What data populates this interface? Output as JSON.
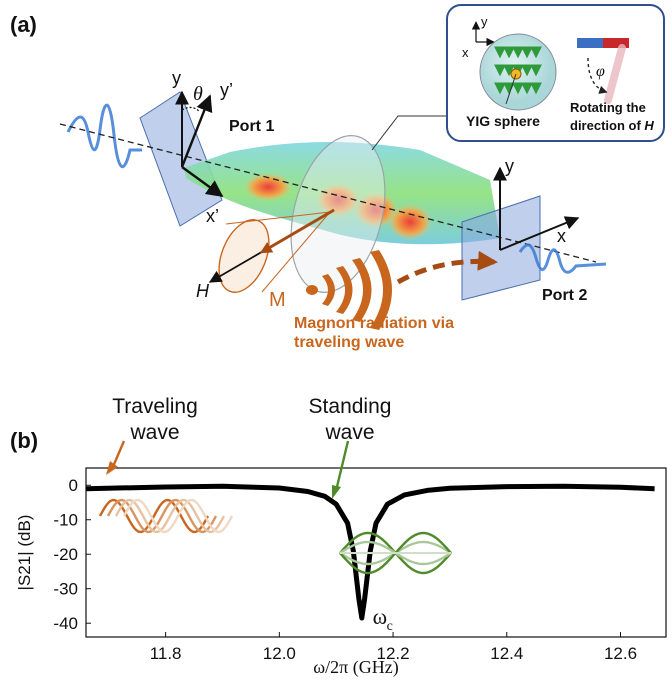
{
  "panel_a": {
    "label": "(a)",
    "axes_port1": {
      "y": "y",
      "theta": "θ",
      "y_prime": "y’",
      "x_prime": "x’"
    },
    "port1_label": "Port 1",
    "port2_label": "Port 2",
    "axes_port2": {
      "y": "y",
      "x": "x"
    },
    "field_label": "H",
    "magnon_label": "M",
    "magnon_caption_line1": "Magnon radiation via",
    "magnon_caption_line2": "traveling wave",
    "inset": {
      "axes": {
        "y": "y",
        "x": "x"
      },
      "sphere_label": "YIG sphere",
      "phi_label": "φ",
      "rotation_line1": "Rotating the",
      "rotation_line2": "direction of ",
      "rotation_H": "H"
    },
    "colors": {
      "orange": "#c8661e",
      "wave_blue": "#3a7bd5",
      "inset_border": "#2f4f8f"
    }
  },
  "panel_b": {
    "label": "(b)",
    "traveling_line1": "Traveling",
    "traveling_line2": "wave",
    "standing_line1": "Standing",
    "standing_line2": "wave",
    "omega_c": "ω",
    "omega_c_sub": "c",
    "colors": {
      "traveling": "#c8661e",
      "standing": "#4f8a2b"
    }
  },
  "chart_data": {
    "type": "line",
    "xlabel": "ω/2π (GHz)",
    "ylabel": "|S21| (dB)",
    "xlim": [
      11.66,
      12.68
    ],
    "ylim": [
      -44,
      5
    ],
    "x_ticks": [
      11.8,
      12.0,
      12.2,
      12.4,
      12.6
    ],
    "y_ticks": [
      0,
      -10,
      -20,
      -30,
      -40
    ],
    "grid": false,
    "series": [
      {
        "x": [
          11.66,
          11.8,
          11.9,
          12.0,
          12.05,
          12.08,
          12.1,
          12.12,
          12.13,
          12.14,
          12.145,
          12.15,
          12.16,
          12.17,
          12.19,
          12.22,
          12.26,
          12.3,
          12.4,
          12.5,
          12.6,
          12.66
        ],
        "y": [
          -1.0,
          -0.5,
          -0.3,
          -0.8,
          -1.8,
          -3.2,
          -5.5,
          -11,
          -19,
          -33,
          -38.5,
          -33,
          -19,
          -11,
          -5.5,
          -2.8,
          -1.5,
          -0.9,
          -0.4,
          -0.3,
          -0.6,
          -1.0
        ]
      }
    ]
  }
}
